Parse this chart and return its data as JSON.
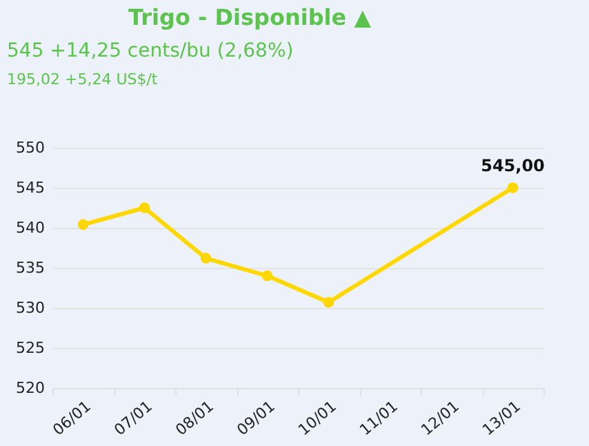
{
  "chart_data": {
    "type": "line",
    "title": "Trigo - Disponible ▲",
    "subtitle": "545 +14,25 cents/bu (2,68%)",
    "annotations": [
      "195,02 +5,24 US$/t"
    ],
    "categories": [
      "06/01",
      "07/01",
      "08/01",
      "09/01",
      "10/01",
      "11/01",
      "12/01",
      "13/01"
    ],
    "series": [
      {
        "color": "#ffd700",
        "values": [
          540.4,
          542.5,
          536.2,
          534.0,
          530.7,
          null,
          null,
          545.0
        ],
        "value_labels": [
          null,
          null,
          null,
          null,
          null,
          null,
          null,
          "545,00"
        ]
      }
    ],
    "ylim": [
      520,
      550
    ],
    "yticks": [
      520,
      525,
      530,
      535,
      540,
      545,
      550
    ],
    "grid": "y",
    "marker": "circle",
    "line_style": "solid"
  }
}
